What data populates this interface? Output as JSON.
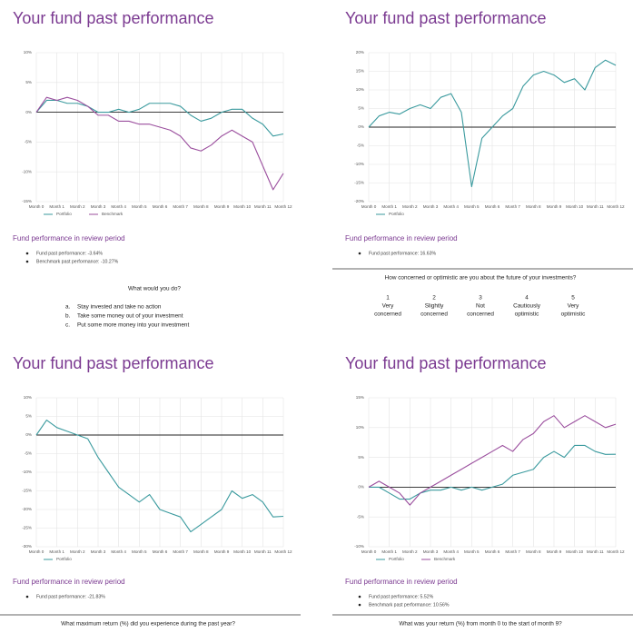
{
  "chart_data": [
    {
      "type": "line",
      "x": [
        0,
        0.5,
        1,
        1.5,
        2,
        2.5,
        3,
        3.5,
        4,
        4.5,
        5,
        5.5,
        6,
        6.5,
        7,
        7.5,
        8,
        8.5,
        9,
        9.5,
        10,
        10.5,
        11,
        11.5,
        12
      ],
      "xlim": [
        0,
        12
      ],
      "xticks": [
        {
          "value": 0,
          "label": "Month 0"
        },
        {
          "value": 1,
          "label": "Month 1"
        },
        {
          "value": 2,
          "label": "Month 2"
        },
        {
          "value": 3,
          "label": "Month 3"
        },
        {
          "value": 4,
          "label": "Month 4"
        },
        {
          "value": 5,
          "label": "Month 5"
        },
        {
          "value": 6,
          "label": "Month 6"
        },
        {
          "value": 7,
          "label": "Month 7"
        },
        {
          "value": 8,
          "label": "Month 8"
        },
        {
          "value": 9,
          "label": "Month 9"
        },
        {
          "value": 10,
          "label": "Month 10"
        },
        {
          "value": 11,
          "label": "Month 11"
        },
        {
          "value": 12,
          "label": "Month 12"
        }
      ],
      "ylim": [
        -15,
        10
      ],
      "yticks": [
        {
          "value": 10,
          "label": "10%"
        },
        {
          "value": 5,
          "label": "5%"
        },
        {
          "value": 0,
          "label": "0%"
        },
        {
          "value": -5,
          "label": "-5%"
        },
        {
          "value": -10,
          "label": "-10%"
        },
        {
          "value": -15,
          "label": "-15%"
        }
      ],
      "grid": true,
      "series": [
        {
          "name": "Portfolio",
          "color": "#3a9a9e",
          "values": [
            0,
            2,
            2,
            1.5,
            1.5,
            1,
            0,
            0,
            0.5,
            0,
            0.5,
            1.5,
            1.5,
            1.5,
            1,
            -0.5,
            -1.5,
            -1,
            0,
            0.5,
            0.5,
            -1,
            -2,
            -4,
            -3.64
          ]
        },
        {
          "name": "Benchmark",
          "color": "#9b4f9e",
          "values": [
            0,
            2.5,
            2,
            2.5,
            2,
            1,
            -0.5,
            -0.5,
            -1.5,
            -1.5,
            -2,
            -2,
            -2.5,
            -3,
            -4,
            -6,
            -6.5,
            -5.5,
            -4,
            -3,
            -4,
            -5,
            -9,
            -13,
            -10.27
          ]
        }
      ]
    },
    {
      "type": "line",
      "x": [
        0,
        0.5,
        1,
        1.5,
        2,
        2.5,
        3,
        3.5,
        4,
        4.5,
        5,
        5.5,
        6,
        6.5,
        7,
        7.5,
        8,
        8.5,
        9,
        9.5,
        10,
        10.5,
        11,
        11.5,
        12
      ],
      "xlim": [
        0,
        12
      ],
      "xticks": [
        {
          "value": 0,
          "label": "Month 0"
        },
        {
          "value": 1,
          "label": "Month 1"
        },
        {
          "value": 2,
          "label": "Month 2"
        },
        {
          "value": 3,
          "label": "Month 3"
        },
        {
          "value": 4,
          "label": "Month 4"
        },
        {
          "value": 5,
          "label": "Month 5"
        },
        {
          "value": 6,
          "label": "Month 6"
        },
        {
          "value": 7,
          "label": "Month 7"
        },
        {
          "value": 8,
          "label": "Month 8"
        },
        {
          "value": 9,
          "label": "Month 9"
        },
        {
          "value": 10,
          "label": "Month 10"
        },
        {
          "value": 11,
          "label": "Month 11"
        },
        {
          "value": 12,
          "label": "Month 12"
        }
      ],
      "ylim": [
        -20,
        20
      ],
      "yticks": [
        {
          "value": 20,
          "label": "20%"
        },
        {
          "value": 15,
          "label": "15%"
        },
        {
          "value": 10,
          "label": "10%"
        },
        {
          "value": 5,
          "label": "5%"
        },
        {
          "value": 0,
          "label": "0%"
        },
        {
          "value": -5,
          "label": "-5%"
        },
        {
          "value": -10,
          "label": "-10%"
        },
        {
          "value": -15,
          "label": "-15%"
        },
        {
          "value": -20,
          "label": "-20%"
        }
      ],
      "grid": true,
      "series": [
        {
          "name": "Portfolio",
          "color": "#3a9a9e",
          "values": [
            0,
            3,
            4,
            3.5,
            5,
            6,
            5,
            8,
            9,
            4,
            -16,
            -3,
            0,
            3,
            5,
            11,
            14,
            15,
            14,
            12,
            13,
            10,
            16,
            18,
            16.63
          ]
        }
      ]
    },
    {
      "type": "line",
      "x": [
        0,
        0.5,
        1,
        1.5,
        2,
        2.5,
        3,
        3.5,
        4,
        4.5,
        5,
        5.5,
        6,
        6.5,
        7,
        7.5,
        8,
        8.5,
        9,
        9.5,
        10,
        10.5,
        11,
        11.5,
        12
      ],
      "xlim": [
        0,
        12
      ],
      "xticks": [
        {
          "value": 0,
          "label": "Month 0"
        },
        {
          "value": 1,
          "label": "Month 1"
        },
        {
          "value": 2,
          "label": "Month 2"
        },
        {
          "value": 3,
          "label": "Month 3"
        },
        {
          "value": 4,
          "label": "Month 4"
        },
        {
          "value": 5,
          "label": "Month 5"
        },
        {
          "value": 6,
          "label": "Month 6"
        },
        {
          "value": 7,
          "label": "Month 7"
        },
        {
          "value": 8,
          "label": "Month 8"
        },
        {
          "value": 9,
          "label": "Month 9"
        },
        {
          "value": 10,
          "label": "Month 10"
        },
        {
          "value": 11,
          "label": "Month 11"
        },
        {
          "value": 12,
          "label": "Month 12"
        }
      ],
      "ylim": [
        -30,
        10
      ],
      "yticks": [
        {
          "value": 10,
          "label": "10%"
        },
        {
          "value": 5,
          "label": "5%"
        },
        {
          "value": 0,
          "label": "0%"
        },
        {
          "value": -5,
          "label": "-5%"
        },
        {
          "value": -10,
          "label": "-10%"
        },
        {
          "value": -15,
          "label": "-15%"
        },
        {
          "value": -20,
          "label": "-20%"
        },
        {
          "value": -25,
          "label": "-25%"
        },
        {
          "value": -30,
          "label": "-30%"
        }
      ],
      "grid": true,
      "series": [
        {
          "name": "Portfolio",
          "color": "#3a9a9e",
          "values": [
            0,
            4,
            2,
            1,
            0,
            -1,
            -6,
            -10,
            -14,
            -16,
            -18,
            -16,
            -20,
            -21,
            -22,
            -26,
            -24,
            -22,
            -20,
            -15,
            -17,
            -16,
            -18,
            -22,
            -21.83
          ]
        }
      ]
    },
    {
      "type": "line",
      "x": [
        0,
        0.5,
        1,
        1.5,
        2,
        2.5,
        3,
        3.5,
        4,
        4.5,
        5,
        5.5,
        6,
        6.5,
        7,
        7.5,
        8,
        8.5,
        9,
        9.5,
        10,
        10.5,
        11,
        11.5,
        12
      ],
      "xlim": [
        0,
        12
      ],
      "xticks": [
        {
          "value": 0,
          "label": "Month 0"
        },
        {
          "value": 1,
          "label": "Month 1"
        },
        {
          "value": 2,
          "label": "Month 2"
        },
        {
          "value": 3,
          "label": "Month 3"
        },
        {
          "value": 4,
          "label": "Month 4"
        },
        {
          "value": 5,
          "label": "Month 5"
        },
        {
          "value": 6,
          "label": "Month 6"
        },
        {
          "value": 7,
          "label": "Month 7"
        },
        {
          "value": 8,
          "label": "Month 8"
        },
        {
          "value": 9,
          "label": "Month 9"
        },
        {
          "value": 10,
          "label": "Month 10"
        },
        {
          "value": 11,
          "label": "Month 11"
        },
        {
          "value": 12,
          "label": "Month 12"
        }
      ],
      "ylim": [
        -10,
        15
      ],
      "yticks": [
        {
          "value": 15,
          "label": "15%"
        },
        {
          "value": 10,
          "label": "10%"
        },
        {
          "value": 5,
          "label": "5%"
        },
        {
          "value": 0,
          "label": "0%"
        },
        {
          "value": -5,
          "label": "-5%"
        },
        {
          "value": -10,
          "label": "-10%"
        }
      ],
      "grid": true,
      "series": [
        {
          "name": "Portfolio",
          "color": "#3a9a9e",
          "values": [
            0,
            0,
            -1,
            -2,
            -2,
            -1,
            -0.5,
            -0.5,
            0,
            -0.5,
            0,
            -0.5,
            0,
            0.5,
            2,
            2.5,
            3,
            5,
            6,
            5,
            7,
            7,
            6,
            5.5,
            5.52
          ]
        },
        {
          "name": "Benchmark",
          "color": "#9b4f9e",
          "values": [
            0,
            1,
            0,
            -1,
            -3,
            -1,
            0,
            1,
            2,
            3,
            4,
            5,
            6,
            7,
            6,
            8,
            9,
            11,
            12,
            10,
            11,
            12,
            11,
            10,
            10.56
          ]
        }
      ]
    }
  ],
  "panels": [
    {
      "title": "Your fund past performance",
      "review_title": "Fund performance in review period",
      "bullets": [
        "Fund past performance: -3.64%",
        "Benchmark past performance: -10.27%"
      ],
      "question": "What would you do?",
      "options": [
        [
          "a.",
          "Stay invested and take no action"
        ],
        [
          "b.",
          "Take some money out of your investment"
        ],
        [
          "c.",
          "Put some more money into your investment"
        ]
      ]
    },
    {
      "title": "Your fund past performance",
      "review_title": "Fund performance in review period",
      "bullets": [
        "Fund past performance: 16.63%"
      ],
      "question": "How concerned or optimistic are you about the future of your investments?",
      "scale": [
        {
          "number": 1,
          "label": [
            "Very",
            "concerned"
          ]
        },
        {
          "number": 2,
          "label": [
            "Slightly",
            "concerned"
          ]
        },
        {
          "number": 3,
          "label": [
            "Not",
            "concerned"
          ]
        },
        {
          "number": 4,
          "label": [
            "Cautiously",
            "optimistic"
          ]
        },
        {
          "number": 5,
          "label": [
            "Very",
            "optimistic"
          ]
        }
      ]
    },
    {
      "title": "Your fund past performance",
      "review_title": "Fund performance in review period",
      "bullets": [
        "Fund past performance: -21.83%"
      ],
      "question": "What maximum return (%) did you experience during the past year?"
    },
    {
      "title": "Your fund past performance",
      "review_title": "Fund performance in review period",
      "bullets": [
        "Fund past performance: 5.52%",
        "Benchmark past performance: 10.56%"
      ],
      "question": "What was your return (%) from month 0 to the start of month 9?"
    }
  ]
}
